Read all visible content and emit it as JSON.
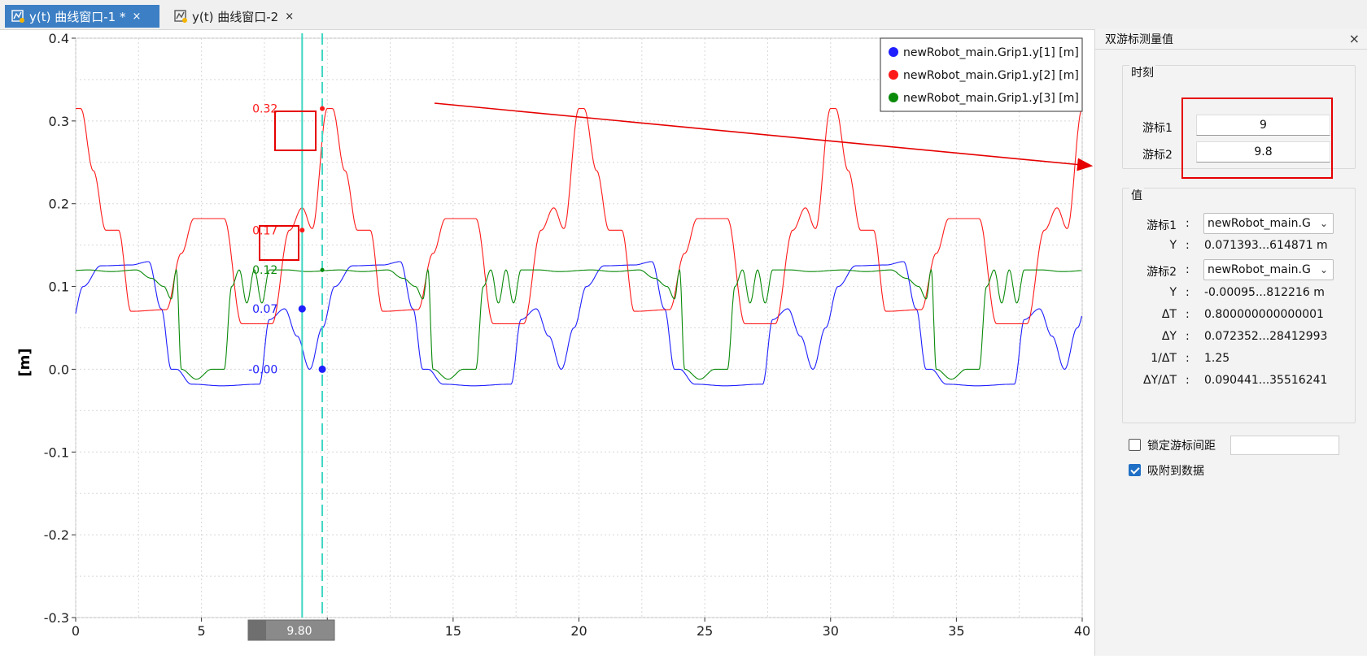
{
  "tabs": [
    {
      "label": "y(t) 曲线窗口-1 *",
      "close": "×",
      "icon": "plot-icon",
      "active": true
    },
    {
      "label": "y(t) 曲线窗口-2",
      "close": "×",
      "icon": "plot-icon",
      "active": false
    }
  ],
  "colors": {
    "accent": "#3c7fc4",
    "series1": "#1f1fff",
    "series2": "#ff1a1a",
    "series3": "#0a8a0a",
    "cursor": "#3fd6c3",
    "annotation": "#e60000"
  },
  "chart_data": {
    "type": "line",
    "ylabel": "[m]",
    "xlim": [
      0,
      40
    ],
    "ylim": [
      -0.3,
      0.4
    ],
    "x_ticks": [
      "0",
      "5",
      "10",
      "15",
      "20",
      "25",
      "30",
      "35",
      "40"
    ],
    "y_ticks": [
      "-0.3",
      "-0.2",
      "-0.1",
      "0.0",
      "0.1",
      "0.2",
      "0.3",
      "0.4"
    ],
    "grid": true,
    "legend_position": "top-right",
    "series": [
      {
        "name": "newRobot_main.Grip1.y[1] [m]",
        "color": "#1f1fff"
      },
      {
        "name": "newRobot_main.Grip1.y[2] [m]",
        "color": "#ff1a1a"
      },
      {
        "name": "newRobot_main.Grip1.y[3] [m]",
        "color": "#0a8a0a"
      }
    ],
    "cursors": [
      {
        "x": 9.0,
        "style": "solid"
      },
      {
        "x": 9.8,
        "style": "dashed"
      }
    ],
    "cursor_readout": "9.80",
    "cursor_values": [
      {
        "label": "0.32",
        "x": 9.8,
        "y": 0.315,
        "series": 1
      },
      {
        "label": "0.17",
        "x": 9.0,
        "y": 0.168,
        "series": 1
      },
      {
        "label": "0.12",
        "x": 9.8,
        "y": 0.12,
        "series": 2
      },
      {
        "label": "0.07",
        "x": 9.0,
        "y": 0.073,
        "series": 0
      },
      {
        "label": "-0.00",
        "x": 9.8,
        "y": 0.0,
        "series": 0
      }
    ]
  },
  "panel": {
    "title": "双游标测量值",
    "close": "×",
    "time_group": {
      "label": "时刻",
      "cursor1_label": "游标1",
      "cursor1_value": "9",
      "cursor2_label": "游标2",
      "cursor2_value": "9.8"
    },
    "value_group": {
      "label": "值",
      "rows": [
        {
          "key": "游标1",
          "sep": ":",
          "value": "newRobot_main.G",
          "type": "select"
        },
        {
          "key": "Y",
          "sep": ":",
          "value": "0.071393...614871 m",
          "type": "text"
        },
        {
          "key": "游标2",
          "sep": ":",
          "value": "newRobot_main.G",
          "type": "select"
        },
        {
          "key": "Y",
          "sep": ":",
          "value": "-0.00095...812216 m",
          "type": "text"
        },
        {
          "key": "ΔT",
          "sep": ":",
          "value": "0.800000000000001",
          "type": "text"
        },
        {
          "key": "ΔY",
          "sep": ":",
          "value": "0.072352...28412993",
          "type": "text"
        },
        {
          "key": "1/ΔT",
          "sep": ":",
          "value": "1.25",
          "type": "text"
        },
        {
          "key": "ΔY/ΔT",
          "sep": ":",
          "value": "0.090441...35516241",
          "type": "text"
        }
      ]
    },
    "lock_spacing": {
      "label": "锁定游标间距",
      "checked": false
    },
    "snap_to_data": {
      "label": "吸附到数据",
      "checked": true
    }
  }
}
